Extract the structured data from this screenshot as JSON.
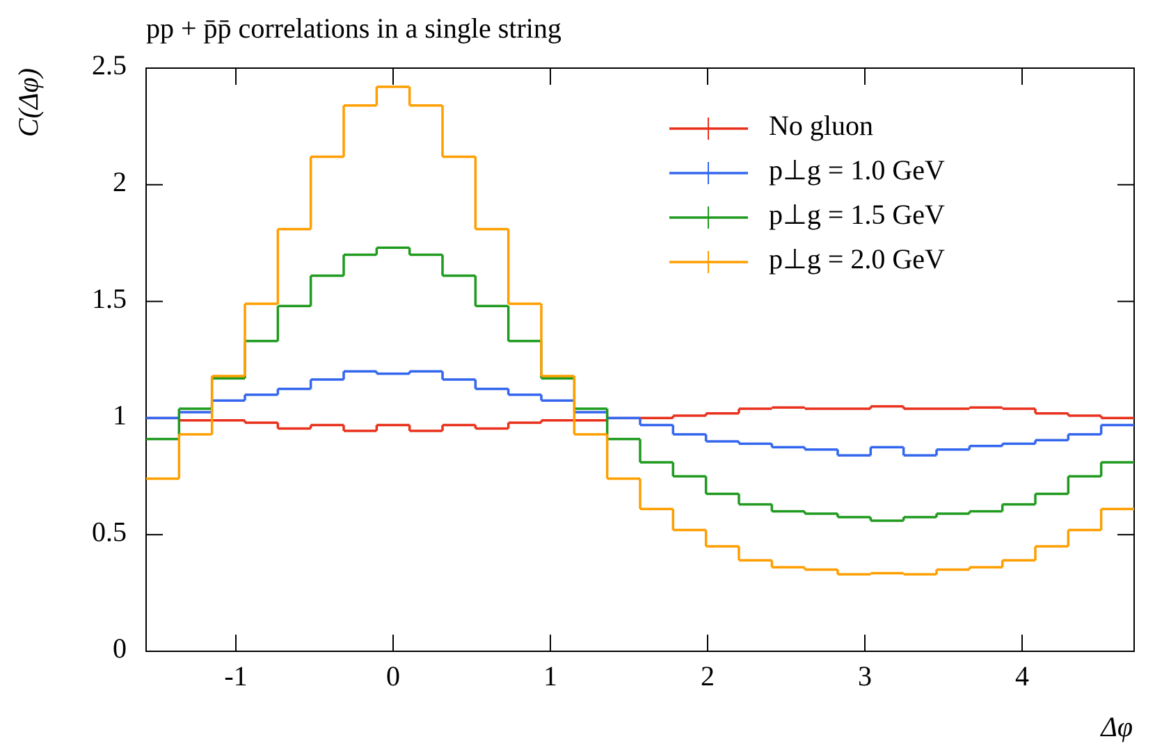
{
  "chart_data": {
    "type": "histogram",
    "title": "pp + p̄p̄ correlations in a single string",
    "x_label": "Δφ",
    "y_label": "C(Δφ)",
    "bins": [
      -1.5708,
      -1.3614,
      -1.1519,
      -0.9425,
      -0.733,
      -0.5236,
      -0.3142,
      -0.1047,
      0.1047,
      0.3142,
      0.5236,
      0.733,
      0.9425,
      1.1519,
      1.3614,
      1.5708,
      1.7802,
      1.9897,
      2.1991,
      2.4086,
      2.618,
      2.8274,
      3.0369,
      3.2463,
      3.4558,
      3.6652,
      3.8746,
      4.0841,
      4.2935,
      4.5029,
      4.7124
    ],
    "series": [
      {
        "name": "No gluon",
        "color": "#e8301c",
        "values": [
          1.0,
          0.99,
          0.99,
          0.98,
          0.955,
          0.97,
          0.945,
          0.97,
          0.945,
          0.97,
          0.955,
          0.98,
          0.99,
          0.99,
          1.0,
          1.0,
          1.01,
          1.02,
          1.04,
          1.045,
          1.04,
          1.04,
          1.05,
          1.04,
          1.04,
          1.045,
          1.04,
          1.02,
          1.01,
          1.0
        ]
      },
      {
        "name": "p⊥g = 1.0 GeV",
        "color": "#3366ee",
        "values": [
          1.0,
          1.025,
          1.075,
          1.1,
          1.125,
          1.165,
          1.2,
          1.19,
          1.2,
          1.165,
          1.125,
          1.1,
          1.075,
          1.025,
          1.0,
          0.97,
          0.93,
          0.9,
          0.89,
          0.875,
          0.865,
          0.84,
          0.875,
          0.84,
          0.865,
          0.88,
          0.89,
          0.905,
          0.93,
          0.97
        ]
      },
      {
        "name": "p⊥g = 1.5 GeV",
        "color": "#1f9a1f",
        "values": [
          0.91,
          1.04,
          1.17,
          1.33,
          1.48,
          1.61,
          1.7,
          1.73,
          1.7,
          1.61,
          1.48,
          1.33,
          1.17,
          1.04,
          0.91,
          0.81,
          0.75,
          0.675,
          0.63,
          0.6,
          0.59,
          0.575,
          0.56,
          0.575,
          0.59,
          0.6,
          0.63,
          0.675,
          0.75,
          0.81
        ]
      },
      {
        "name": "p⊥g = 2.0 GeV",
        "color": "#ff9e00",
        "values": [
          0.74,
          0.93,
          1.18,
          1.49,
          1.81,
          2.12,
          2.34,
          2.42,
          2.34,
          2.12,
          1.81,
          1.49,
          1.18,
          0.93,
          0.74,
          0.61,
          0.52,
          0.45,
          0.39,
          0.36,
          0.35,
          0.33,
          0.335,
          0.33,
          0.35,
          0.36,
          0.39,
          0.45,
          0.52,
          0.61
        ]
      }
    ],
    "xlim": [
      -1.5708,
      4.7124
    ],
    "xticks": [
      -1,
      0,
      1,
      2,
      3,
      4
    ],
    "ylim": [
      0,
      2.5
    ],
    "yticks": [
      0,
      0.5,
      1,
      1.5,
      2,
      2.5
    ],
    "legend": "upper right"
  }
}
